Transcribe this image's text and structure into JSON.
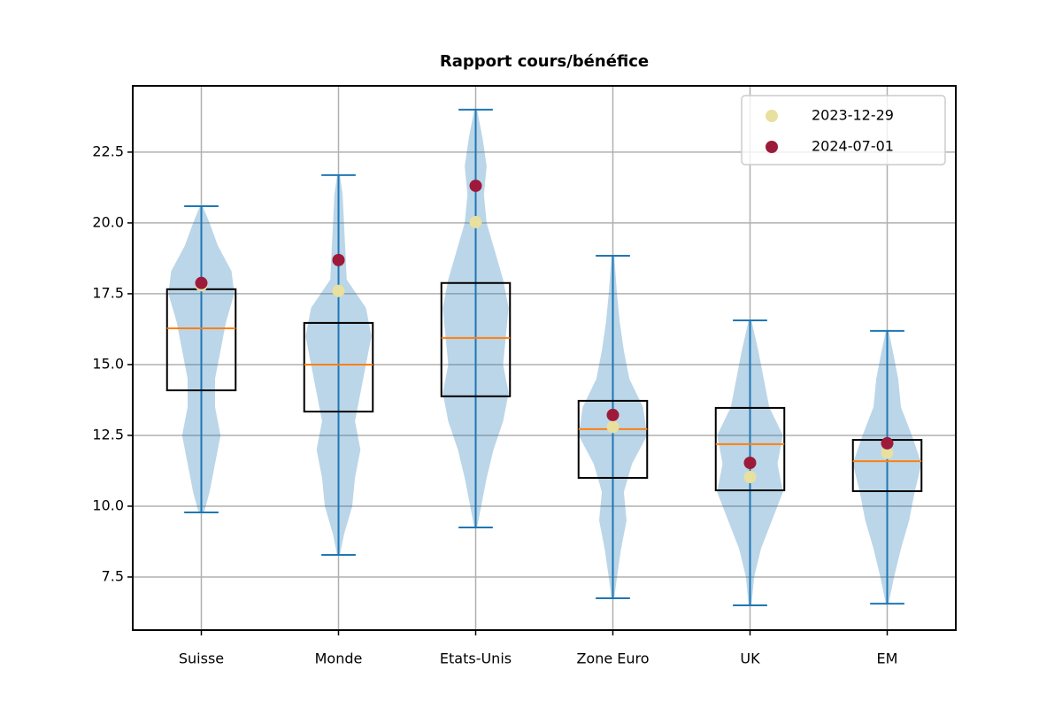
{
  "chart_data": {
    "type": "violin",
    "title": "Rapport cours/bénéfice",
    "categories": [
      "Suisse",
      "Monde",
      "Etats-Unis",
      "Zone Euro",
      "UK",
      "EM"
    ],
    "ylim": [
      5.625,
      24.84
    ],
    "yticks": [
      7.5,
      {
        "value": 10,
        "label": "10.0"
      },
      12.5,
      {
        "value": 15,
        "label": "15.0"
      },
      17.5,
      {
        "value": 20,
        "label": "20.0"
      },
      22.5
    ],
    "grid": true,
    "violin_color": "#1f77b4",
    "violin_opacity": 0.3,
    "box_color": "#000000",
    "median_color": "#ff7f0e",
    "violins": [
      {
        "min": 9.78,
        "max": 20.59,
        "density": {
          "y": [
            9.78,
            10.5,
            11.5,
            12.5,
            13.5,
            14.5,
            15.5,
            16.5,
            17.5,
            18.3,
            19.2,
            20,
            20.59
          ],
          "w": [
            0.02,
            0.06,
            0.1,
            0.14,
            0.1,
            0.1,
            0.14,
            0.18,
            0.24,
            0.22,
            0.12,
            0.06,
            0.01
          ]
        }
      },
      {
        "min": 8.28,
        "max": 21.69,
        "density": {
          "y": [
            8.28,
            9,
            10,
            11,
            12,
            13,
            14,
            15,
            16,
            17,
            18,
            19,
            20,
            21,
            21.69
          ],
          "w": [
            0.01,
            0.04,
            0.1,
            0.12,
            0.16,
            0.12,
            0.16,
            0.2,
            0.24,
            0.2,
            0.06,
            0.05,
            0.04,
            0.03,
            0.01
          ]
        }
      },
      {
        "min": 9.25,
        "max": 24.0,
        "density": {
          "y": [
            9.25,
            10,
            11,
            12,
            13,
            14,
            15,
            16,
            17,
            18,
            19,
            20,
            21,
            22,
            23,
            24
          ],
          "w": [
            0.01,
            0.04,
            0.08,
            0.13,
            0.2,
            0.24,
            0.2,
            0.22,
            0.24,
            0.2,
            0.14,
            0.08,
            0.06,
            0.08,
            0.05,
            0.01
          ]
        }
      },
      {
        "min": 6.75,
        "max": 18.84,
        "density": {
          "y": [
            6.75,
            7.5,
            8.5,
            9.5,
            10.5,
            11.5,
            12.5,
            13.5,
            14.5,
            15.5,
            16.5,
            17.5,
            18.84
          ],
          "w": [
            0.01,
            0.03,
            0.06,
            0.1,
            0.08,
            0.14,
            0.25,
            0.22,
            0.12,
            0.08,
            0.05,
            0.03,
            0.01
          ]
        }
      },
      {
        "min": 6.5,
        "max": 16.56,
        "density": {
          "y": [
            6.5,
            7.5,
            8.5,
            9.5,
            10.5,
            11.5,
            12.5,
            13.5,
            14.5,
            15.5,
            16.56
          ],
          "w": [
            0.01,
            0.03,
            0.08,
            0.16,
            0.24,
            0.2,
            0.24,
            0.14,
            0.1,
            0.06,
            0.01
          ]
        }
      },
      {
        "min": 6.56,
        "max": 16.19,
        "density": {
          "y": [
            6.56,
            7.5,
            8.5,
            9.5,
            10.5,
            11.5,
            12.5,
            13.5,
            14.5,
            15.5,
            16.19
          ],
          "w": [
            0.01,
            0.05,
            0.1,
            0.16,
            0.2,
            0.25,
            0.18,
            0.1,
            0.08,
            0.04,
            0.01
          ]
        }
      }
    ],
    "boxes": [
      {
        "whislo": 9.8,
        "q1": 14.09,
        "med": 16.28,
        "q3": 17.66,
        "whishi": 20.6
      },
      {
        "whislo": 8.72,
        "q1": 13.34,
        "med": 15.0,
        "q3": 16.47,
        "whishi": 21.22
      },
      {
        "whislo": 9.5,
        "q1": 13.88,
        "med": 15.94,
        "q3": 17.88,
        "whishi": 23.81
      },
      {
        "whislo": 7.0,
        "q1": 11.0,
        "med": 12.72,
        "q3": 13.72,
        "whishi": 17.88
      },
      {
        "whislo": 6.5,
        "q1": 10.56,
        "med": 12.19,
        "q3": 13.47,
        "whishi": 16.5
      },
      {
        "whislo": 7.72,
        "q1": 10.53,
        "med": 11.59,
        "q3": 12.34,
        "whishi": 15.13
      }
    ],
    "series": [
      {
        "name": "2023-12-29",
        "color": "#e8e09e",
        "values": [
          17.8,
          17.6,
          20.03,
          12.8,
          11.03,
          11.88
        ]
      },
      {
        "name": "2024-07-01",
        "color": "#9e1a3a",
        "values": [
          17.88,
          18.69,
          21.31,
          13.22,
          11.53,
          12.22
        ]
      }
    ],
    "legend": "upper right"
  }
}
